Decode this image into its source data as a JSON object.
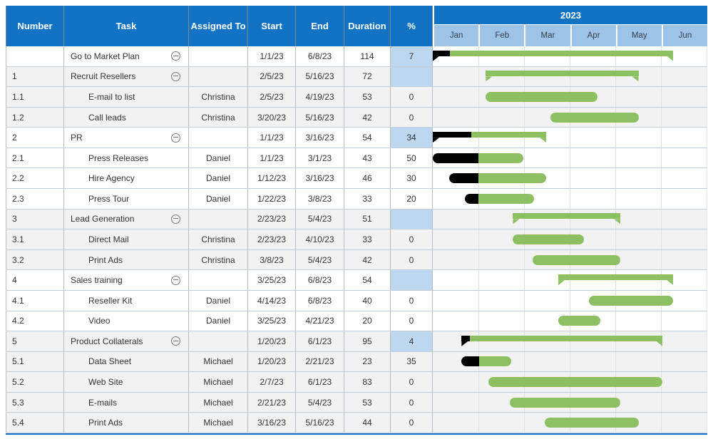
{
  "table": {
    "columns": [
      "Number",
      "Task",
      "Assigned To",
      "Start",
      "End",
      "Duration",
      "%"
    ]
  },
  "colors": {
    "header_blue": "#1272c4",
    "month_blue": "#9dc3e6",
    "pct_summary_blue": "#bdd7ee",
    "bar_green": "#8dc063",
    "bar_progress_black": "#000000",
    "row_gray": "#f2f2f2"
  },
  "chart_data": {
    "type": "gantt",
    "title": "2023",
    "timeline": {
      "year": "2023",
      "months": [
        "Jan",
        "Feb",
        "Mar",
        "Apr",
        "May",
        "Jun"
      ],
      "range_start": "1/1/23",
      "range_end": "6/30/23",
      "range_days": 181
    },
    "legend": {
      "bar_color_meaning": "task duration",
      "black_segment_meaning": "percent complete"
    },
    "tasks": [
      {
        "number": "",
        "task": "Go to Market Plan",
        "assigned": "",
        "start": "1/1/23",
        "end": "6/8/23",
        "duration": "114",
        "pct": "7",
        "summary": true,
        "group": 0
      },
      {
        "number": "1",
        "task": "Recruit Resellers",
        "assigned": "",
        "start": "2/5/23",
        "end": "5/16/23",
        "duration": "72",
        "pct": "",
        "summary": true,
        "group": 1
      },
      {
        "number": "1.1",
        "task": "E-mail to list",
        "assigned": "Christina",
        "start": "2/5/23",
        "end": "4/19/23",
        "duration": "53",
        "pct": "0",
        "summary": false,
        "group": 1
      },
      {
        "number": "1.2",
        "task": "Call leads",
        "assigned": "Christina",
        "start": "3/20/23",
        "end": "5/16/23",
        "duration": "42",
        "pct": "0",
        "summary": false,
        "group": 1
      },
      {
        "number": "2",
        "task": "PR",
        "assigned": "",
        "start": "1/1/23",
        "end": "3/16/23",
        "duration": "54",
        "pct": "34",
        "summary": true,
        "group": 2
      },
      {
        "number": "2.1",
        "task": "Press Releases",
        "assigned": "Daniel",
        "start": "1/1/23",
        "end": "3/1/23",
        "duration": "43",
        "pct": "50",
        "summary": false,
        "group": 2
      },
      {
        "number": "2.2",
        "task": "Hire Agency",
        "assigned": "Daniel",
        "start": "1/12/23",
        "end": "3/16/23",
        "duration": "46",
        "pct": "30",
        "summary": false,
        "group": 2
      },
      {
        "number": "2.3",
        "task": "Press Tour",
        "assigned": "Daniel",
        "start": "1/22/23",
        "end": "3/8/23",
        "duration": "33",
        "pct": "20",
        "summary": false,
        "group": 2
      },
      {
        "number": "3",
        "task": "Lead Generation",
        "assigned": "",
        "start": "2/23/23",
        "end": "5/4/23",
        "duration": "51",
        "pct": "",
        "summary": true,
        "group": 3
      },
      {
        "number": "3.1",
        "task": "Direct Mail",
        "assigned": "Christina",
        "start": "2/23/23",
        "end": "4/10/23",
        "duration": "33",
        "pct": "0",
        "summary": false,
        "group": 3
      },
      {
        "number": "3.2",
        "task": "Print Ads",
        "assigned": "Christina",
        "start": "3/8/23",
        "end": "5/4/23",
        "duration": "42",
        "pct": "0",
        "summary": false,
        "group": 3
      },
      {
        "number": "4",
        "task": "Sales training",
        "assigned": "",
        "start": "3/25/23",
        "end": "6/8/23",
        "duration": "54",
        "pct": "",
        "summary": true,
        "group": 4
      },
      {
        "number": "4.1",
        "task": "Reseller Kit",
        "assigned": "Daniel",
        "start": "4/14/23",
        "end": "6/8/23",
        "duration": "40",
        "pct": "0",
        "summary": false,
        "group": 4
      },
      {
        "number": "4.2",
        "task": "Video",
        "assigned": "Daniel",
        "start": "3/25/23",
        "end": "4/21/23",
        "duration": "20",
        "pct": "0",
        "summary": false,
        "group": 4
      },
      {
        "number": "5",
        "task": "Product Collaterals",
        "assigned": "",
        "start": "1/20/23",
        "end": "6/1/23",
        "duration": "95",
        "pct": "4",
        "summary": true,
        "group": 5
      },
      {
        "number": "5.1",
        "task": "Data Sheet",
        "assigned": "Michael",
        "start": "1/20/23",
        "end": "2/21/23",
        "duration": "23",
        "pct": "35",
        "summary": false,
        "group": 5
      },
      {
        "number": "5.2",
        "task": "Web Site",
        "assigned": "Michael",
        "start": "2/7/23",
        "end": "6/1/23",
        "duration": "83",
        "pct": "0",
        "summary": false,
        "group": 5
      },
      {
        "number": "5.3",
        "task": "E-mails",
        "assigned": "Michael",
        "start": "2/21/23",
        "end": "5/4/23",
        "duration": "53",
        "pct": "0",
        "summary": false,
        "group": 5
      },
      {
        "number": "5.4",
        "task": "Print Ads",
        "assigned": "Michael",
        "start": "3/16/23",
        "end": "5/16/23",
        "duration": "44",
        "pct": "0",
        "summary": false,
        "group": 5
      }
    ]
  }
}
